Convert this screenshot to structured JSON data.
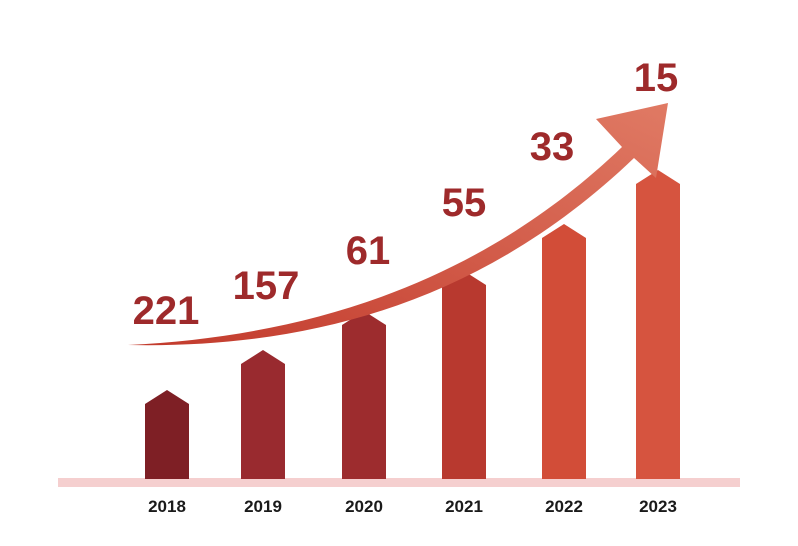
{
  "chart_data": {
    "type": "bar",
    "categories": [
      "2018",
      "2019",
      "2020",
      "2021",
      "2022",
      "2023"
    ],
    "series": [
      {
        "values": [
          221,
          157,
          61,
          55,
          33,
          15
        ]
      }
    ],
    "data_labels": [
      "221",
      "157",
      "61",
      "55",
      "33",
      "15"
    ],
    "title": "",
    "xlabel": "",
    "ylabel": "",
    "bar_shape": "pentagon-arrow",
    "trend_arrow": "upward-curved",
    "colors": {
      "bars": [
        "#7e1f25",
        "#992a2f",
        "#9d2c2e",
        "#b8392f",
        "#d24d38",
        "#d6543f"
      ],
      "labels": "#9e2a2b",
      "arrow_start": "#c23a2c",
      "arrow_end": "#e07a64",
      "baseline": "#f5cfcf",
      "year_text": "#1a1a1a"
    }
  }
}
